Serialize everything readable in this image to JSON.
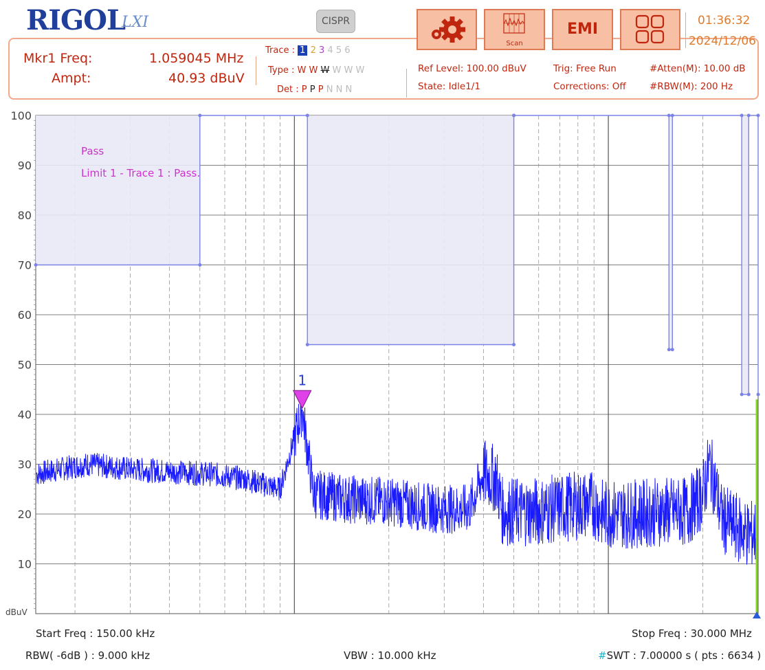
{
  "header": {
    "logo": "RIGOL",
    "lxi": "LXI",
    "cispr_button": "CISPR",
    "scan_label": "Scan",
    "emi_label": "EMI",
    "time": "01:36:32",
    "date": "2024/12/06"
  },
  "marker": {
    "freq_label": "Mkr1 Freq:",
    "freq_value": "1.059045 MHz",
    "ampt_label": "Ampt:",
    "ampt_value": "40.93 dBuV"
  },
  "trace": {
    "trace_label": "Trace :",
    "type_label": "Type :",
    "det_label": "Det :",
    "numbers": [
      "1",
      "2",
      "3",
      "4",
      "5",
      "6"
    ],
    "types": [
      "W",
      "W",
      "W",
      "W",
      "W",
      "W"
    ],
    "dets": [
      "P",
      "P",
      "P",
      "N",
      "N",
      "N"
    ]
  },
  "status": {
    "ref_level": "Ref Level: 100.00 dBuV",
    "state": "State: Idle1/1",
    "trig": "Trig: Free Run",
    "corrections": "Corrections: Off",
    "atten": "#Atten(M): 10.00 dB",
    "rbw_m": "#RBW(M): 200 Hz"
  },
  "footer": {
    "start_freq": "Start Freq : 150.00 kHz",
    "rbw": "RBW( -6dB ) : 9.000 kHz",
    "vbw": "VBW : 10.000 kHz",
    "stop_freq": "Stop Freq : 30.000 MHz",
    "swt_hash": "#",
    "swt": "SWT : 7.00000 s ( pts : 6634 )"
  },
  "plot": {
    "pass_text": "Pass",
    "limit_text": "Limit 1 - Trace 1 : Pass.",
    "marker_number": "1",
    "unit_label": "dBuV",
    "y_ticks": [
      "100",
      "90",
      "80",
      "70",
      "60",
      "50",
      "40",
      "30",
      "20",
      "10"
    ]
  },
  "colors": {
    "accent_orange": "#e07a55",
    "marker_red": "#c0260e",
    "trace_blue": "#1a1aff",
    "limit_line": "#7b83e6",
    "pass_magenta": "#cc33cc",
    "stop_line_green": "#88d42a"
  },
  "chart_data": {
    "type": "line",
    "xscale": "log",
    "xlim_mhz": [
      0.15,
      30
    ],
    "ylim": [
      0,
      100
    ],
    "ylabel": "dBuV",
    "limit_line": {
      "name": "Limit 1",
      "points_mhz_db": [
        [
          0.15,
          70
        ],
        [
          0.5,
          70
        ],
        [
          0.5,
          100
        ],
        [
          1.1,
          100
        ],
        [
          1.1,
          54
        ],
        [
          5.0,
          54
        ],
        [
          5.0,
          100
        ],
        [
          5.0,
          100
        ],
        [
          15.6,
          100
        ],
        [
          15.6,
          53
        ],
        [
          16.0,
          53
        ],
        [
          16.0,
          100
        ],
        [
          26.6,
          100
        ],
        [
          26.6,
          44
        ],
        [
          28.0,
          44
        ],
        [
          28.0,
          100
        ],
        [
          30,
          100
        ],
        [
          30,
          44
        ]
      ]
    },
    "trace": {
      "name": "Trace 1",
      "points_mhz_db": [
        [
          0.15,
          28
        ],
        [
          0.18,
          29
        ],
        [
          0.22,
          30
        ],
        [
          0.3,
          29
        ],
        [
          0.4,
          28.5
        ],
        [
          0.55,
          28
        ],
        [
          0.7,
          27
        ],
        [
          0.9,
          25
        ],
        [
          1.059,
          40.93
        ],
        [
          1.15,
          24
        ],
        [
          1.5,
          23
        ],
        [
          2.0,
          22.5
        ],
        [
          2.5,
          21.5
        ],
        [
          3.0,
          21
        ],
        [
          3.6,
          21
        ],
        [
          4.0,
          28
        ],
        [
          4.4,
          27
        ],
        [
          4.6,
          20.5
        ],
        [
          6.0,
          20.5
        ],
        [
          7.5,
          21.5
        ],
        [
          9.0,
          22
        ],
        [
          9.6,
          20
        ],
        [
          12,
          20
        ],
        [
          15,
          20.5
        ],
        [
          18,
          20.5
        ],
        [
          20,
          24
        ],
        [
          21,
          30
        ],
        [
          22,
          25
        ],
        [
          23,
          19
        ],
        [
          26,
          17
        ],
        [
          28,
          16
        ],
        [
          30,
          16
        ]
      ]
    },
    "marker": {
      "name": "1",
      "freq_mhz": 1.059045,
      "ampt_dbuv": 40.93
    }
  }
}
